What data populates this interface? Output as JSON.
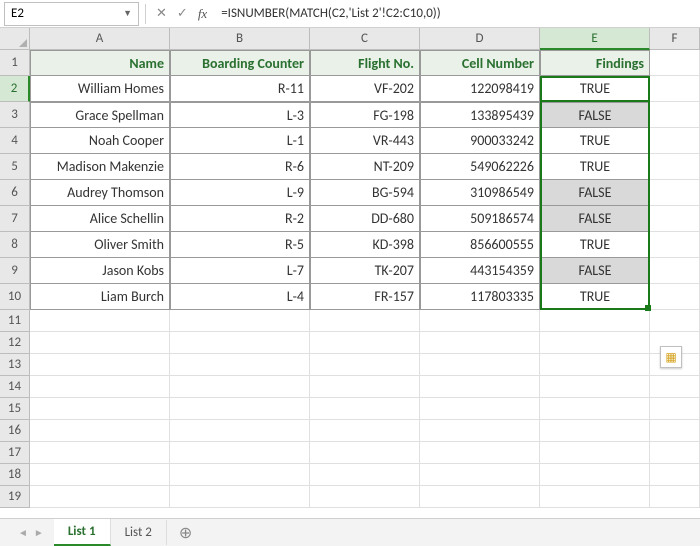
{
  "nameBox": "E2",
  "formula": "=ISNUMBER(MATCH(C2,'List 2'!C2:C10,0))",
  "columns": [
    "A",
    "B",
    "C",
    "D",
    "E",
    "F"
  ],
  "headers": {
    "A": "Name",
    "B": "Boarding Counter",
    "C": "Flight No.",
    "D": "Cell Number",
    "E": "Findings"
  },
  "rows": [
    {
      "A": "William Homes",
      "B": "R-11",
      "C": "VF-202",
      "D": "122098419",
      "E": "TRUE"
    },
    {
      "A": "Grace Spellman",
      "B": "L-3",
      "C": "FG-198",
      "D": "133895439",
      "E": "FALSE"
    },
    {
      "A": "Noah Cooper",
      "B": "L-1",
      "C": "VR-443",
      "D": "900033242",
      "E": "TRUE"
    },
    {
      "A": "Madison Makenzie",
      "B": "R-6",
      "C": "NT-209",
      "D": "549062226",
      "E": "TRUE"
    },
    {
      "A": "Audrey Thomson",
      "B": "L-9",
      "C": "BG-594",
      "D": "310986549",
      "E": "FALSE"
    },
    {
      "A": "Alice Schellin",
      "B": "R-2",
      "C": "DD-680",
      "D": "509186574",
      "E": "FALSE"
    },
    {
      "A": "Oliver Smith",
      "B": "R-5",
      "C": "KD-398",
      "D": "856600555",
      "E": "TRUE"
    },
    {
      "A": "Jason Kobs",
      "B": "L-7",
      "C": "TK-207",
      "D": "443154359",
      "E": "FALSE"
    },
    {
      "A": "Liam Burch",
      "B": "L-4",
      "C": "FR-157",
      "D": "117803335",
      "E": "TRUE"
    }
  ],
  "emptyRowStart": 11,
  "emptyRowEnd": 19,
  "tabs": [
    "List 1",
    "List 2"
  ],
  "activeTab": 0,
  "colors": {
    "headerBg": "#eaf1e8",
    "headerFg": "#2a7030",
    "trueBg": "#ffffff",
    "falseBg": "#d9d9d9",
    "selBorder": "#1a7a1a",
    "gridHeaderBg": "#e8e8e8"
  },
  "layout": {
    "rowHeadW": 30,
    "colHeadH": 22,
    "dataRowH": 26,
    "emptyRowH": 22,
    "colW": {
      "A": 140,
      "B": 140,
      "C": 110,
      "D": 120,
      "E": 110,
      "F": 50
    }
  }
}
